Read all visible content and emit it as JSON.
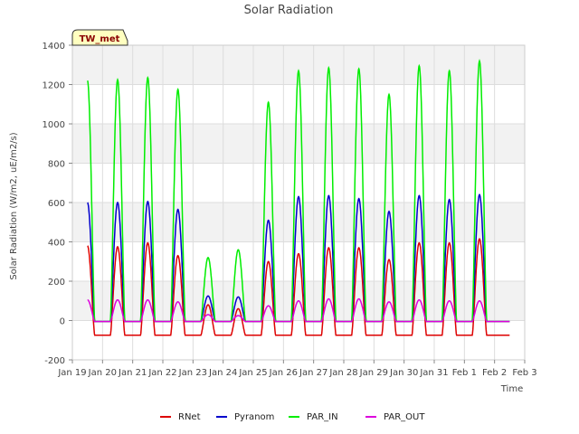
{
  "chart_data": {
    "type": "line",
    "title": "Solar Radiation",
    "xlabel": "Time",
    "ylabel": "Solar Radiation (W/m2, uE/m2/s)",
    "station_label": "TW_met",
    "ylim": [
      -200,
      1400
    ],
    "yticks": [
      -200,
      0,
      200,
      400,
      600,
      800,
      1000,
      1200,
      1400
    ],
    "xlim": [
      0,
      15
    ],
    "xticks": [
      {
        "x": 0,
        "label": "Jan 19"
      },
      {
        "x": 1,
        "label": "Jan 20"
      },
      {
        "x": 2,
        "label": "Jan 21"
      },
      {
        "x": 3,
        "label": "Jan 22"
      },
      {
        "x": 4,
        "label": "Jan 23"
      },
      {
        "x": 5,
        "label": "Jan 24"
      },
      {
        "x": 6,
        "label": "Jan 25"
      },
      {
        "x": 7,
        "label": "Jan 26"
      },
      {
        "x": 8,
        "label": "Jan 27"
      },
      {
        "x": 9,
        "label": "Jan 28"
      },
      {
        "x": 10,
        "label": "Jan 29"
      },
      {
        "x": 11,
        "label": "Jan 30"
      },
      {
        "x": 12,
        "label": "Jan 31"
      },
      {
        "x": 13,
        "label": "Feb 1"
      },
      {
        "x": 14,
        "label": "Feb 2"
      },
      {
        "x": 15,
        "label": "Feb 3"
      }
    ],
    "grid": true,
    "legend_position": "bottom",
    "series": [
      {
        "name": "RNet",
        "color": "#dd0000",
        "night": -75,
        "peaks": [
          380,
          375,
          395,
          330,
          80,
          60,
          300,
          340,
          370,
          370,
          310,
          395,
          395,
          415
        ]
      },
      {
        "name": "Pyranom",
        "color": "#0000cc",
        "night": -5,
        "peaks": [
          600,
          600,
          605,
          565,
          125,
          120,
          510,
          630,
          635,
          620,
          555,
          635,
          615,
          640
        ]
      },
      {
        "name": "PAR_IN",
        "color": "#00ee00",
        "night": -5,
        "peaks": [
          1220,
          1225,
          1235,
          1175,
          320,
          360,
          1110,
          1270,
          1285,
          1280,
          1150,
          1295,
          1270,
          1320
        ]
      },
      {
        "name": "PAR_OUT",
        "color": "#dd00dd",
        "night": -5,
        "peaks": [
          105,
          105,
          105,
          95,
          30,
          25,
          75,
          100,
          110,
          110,
          95,
          105,
          100,
          100
        ]
      }
    ]
  }
}
